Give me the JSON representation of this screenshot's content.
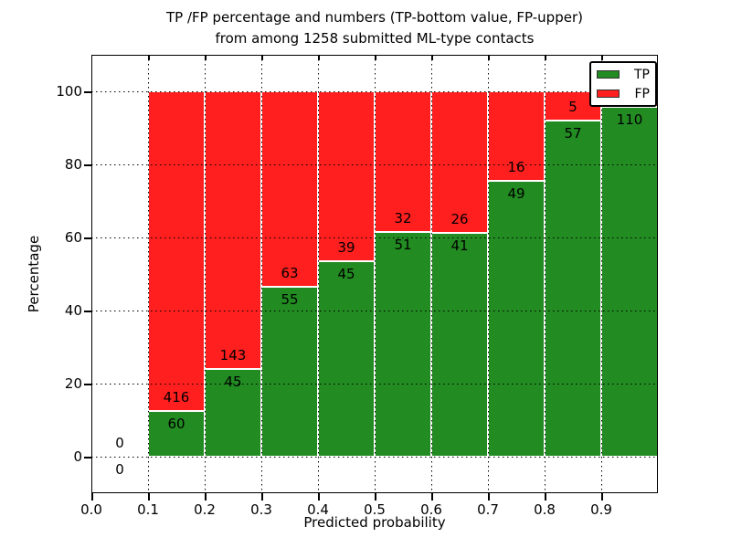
{
  "chart_data": {
    "type": "bar",
    "stacked": true,
    "normalized_to_percent": true,
    "title": "TP /FP percentage and numbers (TP-bottom value, FP-upper)",
    "subtitle": "from among 1258 submitted ML-type contacts",
    "xlabel": "Predicted probability",
    "ylabel": "Percentage",
    "xlim": [
      0.0,
      1.0
    ],
    "ylim": [
      -10,
      110
    ],
    "grid": true,
    "bar_width": 0.1,
    "yticks": [
      0,
      20,
      40,
      60,
      80,
      100
    ],
    "xticks": [
      {
        "label": "0.0",
        "v": 0.0
      },
      {
        "label": "0.1",
        "v": 0.1
      },
      {
        "label": "0.2",
        "v": 0.2
      },
      {
        "label": "0.3",
        "v": 0.3
      },
      {
        "label": "0.4",
        "v": 0.4
      },
      {
        "label": "0.5",
        "v": 0.5
      },
      {
        "label": "0.6",
        "v": 0.6
      },
      {
        "label": "0.7",
        "v": 0.7
      },
      {
        "label": "0.8",
        "v": 0.8
      },
      {
        "label": "0.9",
        "v": 0.9
      }
    ],
    "bins": [
      {
        "x_start": 0.0,
        "tp_label": "0",
        "fp_label": "0",
        "tp_pct": 0.0,
        "fp_pct": 0.0
      },
      {
        "x_start": 0.1,
        "tp_label": "60",
        "fp_label": "416",
        "tp_pct": 12.6,
        "fp_pct": 87.4
      },
      {
        "x_start": 0.2,
        "tp_label": "45",
        "fp_label": "143",
        "tp_pct": 23.9,
        "fp_pct": 76.1
      },
      {
        "x_start": 0.3,
        "tp_label": "55",
        "fp_label": "63",
        "tp_pct": 46.6,
        "fp_pct": 53.4
      },
      {
        "x_start": 0.4,
        "tp_label": "45",
        "fp_label": "39",
        "tp_pct": 53.6,
        "fp_pct": 46.4
      },
      {
        "x_start": 0.5,
        "tp_label": "51",
        "fp_label": "32",
        "tp_pct": 61.4,
        "fp_pct": 38.6
      },
      {
        "x_start": 0.6,
        "tp_label": "41",
        "fp_label": "26",
        "tp_pct": 61.2,
        "fp_pct": 38.8
      },
      {
        "x_start": 0.7,
        "tp_label": "49",
        "fp_label": "16",
        "tp_pct": 75.4,
        "fp_pct": 24.6
      },
      {
        "x_start": 0.8,
        "tp_label": "57",
        "fp_label": "5",
        "tp_pct": 91.9,
        "fp_pct": 8.1
      },
      {
        "x_start": 0.9,
        "tp_label": "110",
        "fp_label": "",
        "tp_pct": 95.7,
        "fp_pct": 4.3
      }
    ],
    "legend": {
      "position": "upper right",
      "entries": [
        {
          "label": "TP",
          "color": "#228b22"
        },
        {
          "label": "FP",
          "color": "#ff1f1f"
        }
      ]
    },
    "colors": {
      "tp": "#228b22",
      "fp": "#ff1f1f",
      "grid": "#000000",
      "text": "#000000"
    }
  }
}
